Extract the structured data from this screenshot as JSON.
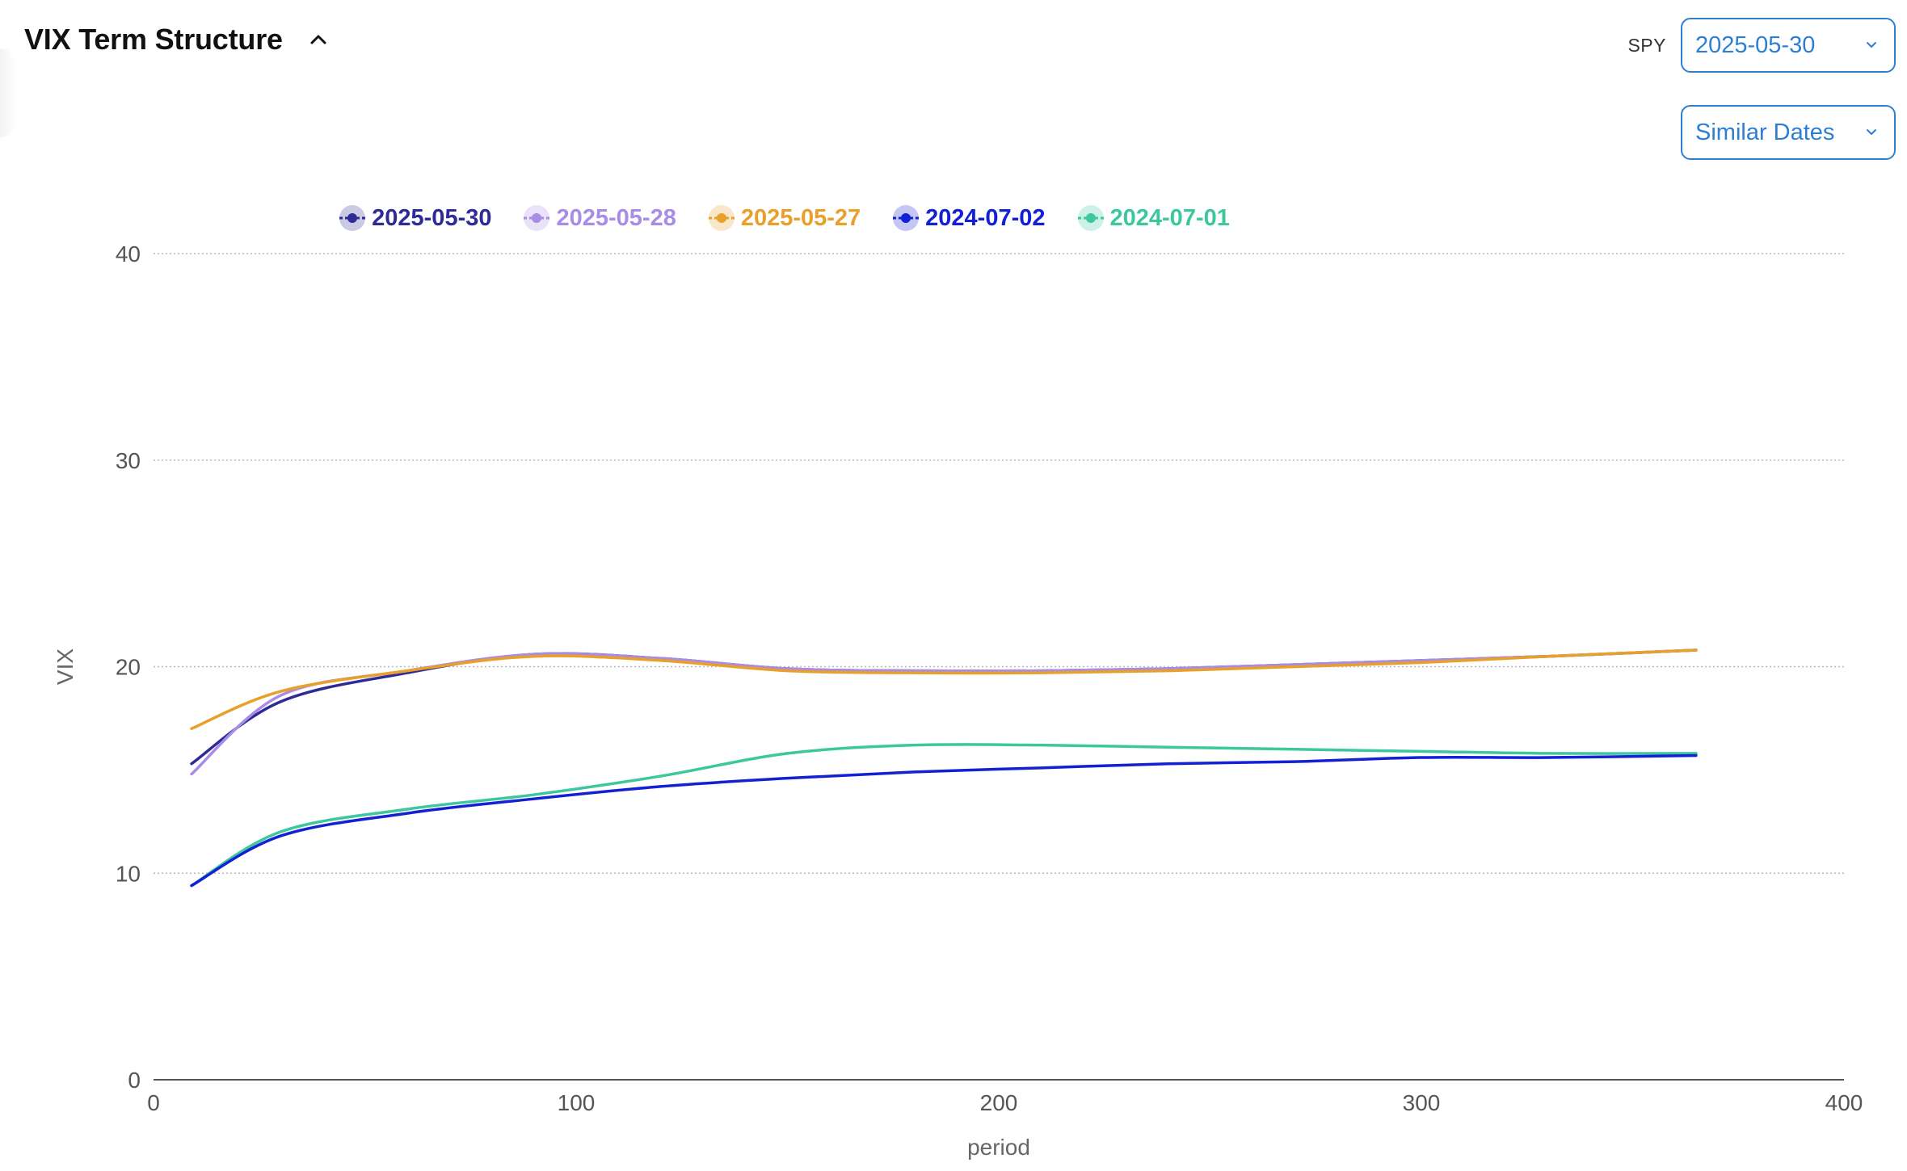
{
  "header": {
    "title": "VIX Term Structure"
  },
  "controls": {
    "ticker_label": "SPY",
    "date_select_value": "2025-05-30",
    "compare_select_value": "Similar Dates"
  },
  "colors": {
    "accent": "#2d7fd3"
  },
  "chart_data": {
    "type": "line",
    "xlabel": "period",
    "ylabel": "VIX",
    "xlim": [
      0,
      400
    ],
    "ylim": [
      0,
      40
    ],
    "xticks": [
      0,
      100,
      200,
      300,
      400
    ],
    "yticks": [
      0,
      10,
      20,
      30,
      40
    ],
    "grid": "horizontal dotted",
    "legend_position": "top",
    "series": [
      {
        "name": "2025-05-30",
        "color": "#2e2a96",
        "x": [
          9,
          30,
          60,
          90,
          120,
          150,
          180,
          210,
          240,
          270,
          300,
          330,
          365
        ],
        "y": [
          15.3,
          18.3,
          19.7,
          20.6,
          20.4,
          19.9,
          19.8,
          19.8,
          19.9,
          20.1,
          20.3,
          20.5,
          20.8
        ]
      },
      {
        "name": "2025-05-28",
        "color": "#a98ce6",
        "x": [
          9,
          30,
          60,
          90,
          120,
          150,
          180,
          210,
          240,
          270,
          300,
          330,
          365
        ],
        "y": [
          14.8,
          18.6,
          19.8,
          20.6,
          20.4,
          19.9,
          19.8,
          19.8,
          19.9,
          20.1,
          20.3,
          20.5,
          20.8
        ]
      },
      {
        "name": "2025-05-27",
        "color": "#e8a02a",
        "x": [
          9,
          30,
          60,
          90,
          120,
          150,
          180,
          210,
          240,
          270,
          300,
          330,
          365
        ],
        "y": [
          17.0,
          18.8,
          19.8,
          20.5,
          20.3,
          19.8,
          19.7,
          19.7,
          19.8,
          20.0,
          20.2,
          20.5,
          20.8
        ]
      },
      {
        "name": "2024-07-02",
        "color": "#1320d4",
        "x": [
          9,
          30,
          60,
          90,
          120,
          150,
          180,
          210,
          240,
          270,
          300,
          330,
          365
        ],
        "y": [
          9.4,
          11.8,
          12.9,
          13.6,
          14.2,
          14.6,
          14.9,
          15.1,
          15.3,
          15.4,
          15.6,
          15.6,
          15.7
        ]
      },
      {
        "name": "2024-07-01",
        "color": "#3cc79e",
        "x": [
          9,
          30,
          60,
          90,
          120,
          150,
          180,
          210,
          240,
          270,
          300,
          330,
          365
        ],
        "y": [
          9.4,
          12.0,
          13.1,
          13.8,
          14.7,
          15.8,
          16.2,
          16.2,
          16.1,
          16.0,
          15.9,
          15.8,
          15.8
        ]
      }
    ]
  }
}
